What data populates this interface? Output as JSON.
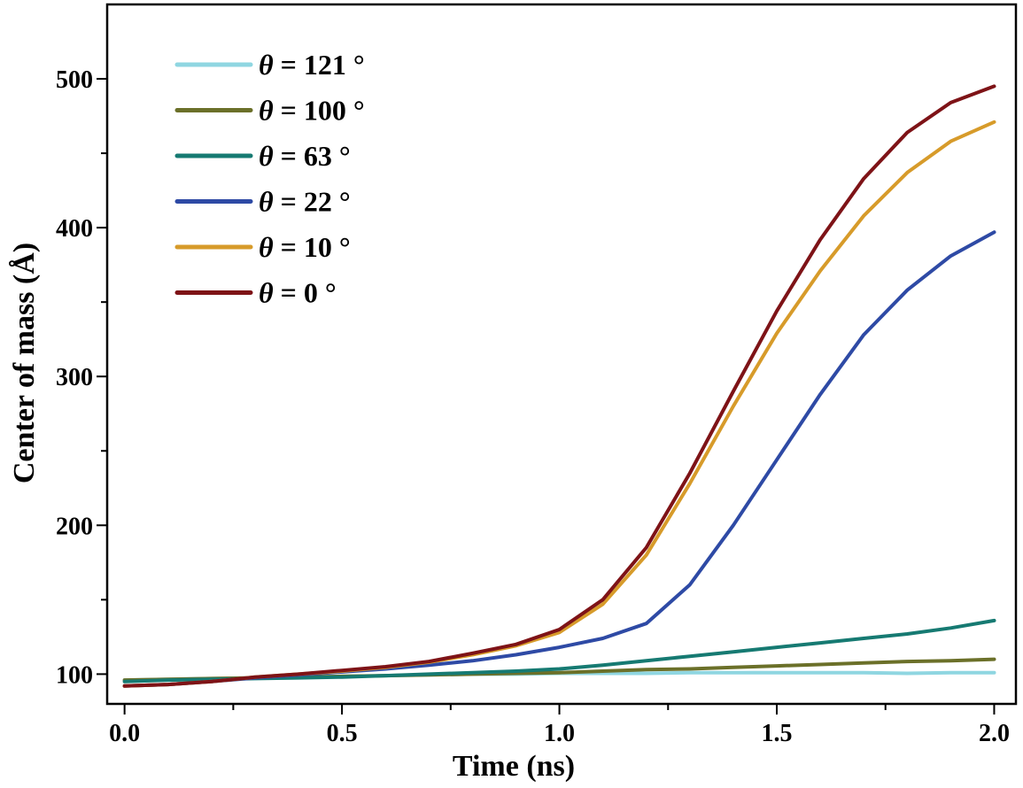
{
  "chart_data": {
    "type": "line",
    "title": "",
    "xlabel": "Time (ns)",
    "ylabel": "Center of mass (Å)",
    "xlim": [
      -0.04,
      2.05
    ],
    "ylim": [
      80,
      550
    ],
    "xticks": [
      0.0,
      0.5,
      1.0,
      1.5,
      2.0
    ],
    "xtick_labels": [
      "0.0",
      "0.5",
      "1.0",
      "1.5",
      "2.0"
    ],
    "yticks": [
      100,
      200,
      300,
      400,
      500
    ],
    "ytick_labels": [
      "100",
      "200",
      "300",
      "400",
      "500"
    ],
    "grid": false,
    "legend_position": "top-left",
    "x": [
      0.0,
      0.1,
      0.2,
      0.3,
      0.4,
      0.5,
      0.6,
      0.7,
      0.8,
      0.9,
      1.0,
      1.1,
      1.2,
      1.3,
      1.4,
      1.5,
      1.6,
      1.7,
      1.8,
      1.9,
      2.0
    ],
    "series": [
      {
        "name": "θ = 121 °",
        "symbol": "θ",
        "label_rest": " = 121 °",
        "color": "#8fd6e1",
        "values": [
          96,
          96.5,
          97,
          97.5,
          98,
          98.5,
          99,
          99.5,
          100,
          100,
          100.5,
          100.5,
          100.5,
          101,
          101,
          101,
          101,
          101,
          100.5,
          101,
          101
        ]
      },
      {
        "name": "θ = 100 °",
        "symbol": "θ",
        "label_rest": " = 100 °",
        "color": "#6b7029",
        "values": [
          96,
          96.5,
          97,
          97.5,
          98,
          98.5,
          99,
          99.5,
          100,
          100.5,
          101,
          102,
          103,
          103.5,
          104.5,
          105.5,
          106.5,
          107.5,
          108.5,
          109,
          110
        ]
      },
      {
        "name": "θ = 63 °",
        "symbol": "θ",
        "label_rest": " = 63 °",
        "color": "#167a72",
        "values": [
          95,
          96,
          96.5,
          97,
          97.5,
          98,
          99,
          100,
          101,
          102,
          103.5,
          106,
          109,
          112,
          115,
          118,
          121,
          124,
          127,
          131,
          136
        ]
      },
      {
        "name": "θ = 22 °",
        "symbol": "θ",
        "label_rest": " = 22 °",
        "color": "#2e4aa5",
        "values": [
          92,
          93,
          95,
          97.5,
          99.5,
          101.5,
          103.5,
          106,
          109,
          113,
          118,
          124,
          134,
          160,
          200,
          244,
          288,
          328,
          358,
          381,
          397
        ]
      },
      {
        "name": "θ = 10 °",
        "symbol": "θ",
        "label_rest": " = 10 °",
        "color": "#d79b2a",
        "values": [
          92,
          93,
          95,
          98,
          100,
          102,
          104.5,
          108,
          113,
          119,
          128,
          147,
          180,
          228,
          280,
          329,
          371,
          408,
          437,
          458,
          471
        ]
      },
      {
        "name": "θ = 0 °",
        "symbol": "θ",
        "label_rest": " = 0 °",
        "color": "#7e1317",
        "values": [
          92,
          93,
          95,
          98,
          100,
          102.5,
          105,
          108.5,
          114,
          120,
          130,
          150,
          185,
          235,
          290,
          344,
          392,
          433,
          464,
          484,
          495
        ]
      }
    ]
  }
}
